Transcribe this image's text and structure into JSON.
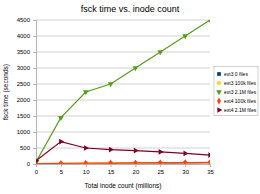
{
  "chart_data": {
    "type": "line",
    "title": "fsck time vs. inode count",
    "x_label": "Total inode count (millions)",
    "y_label": "fsck time (seconds)",
    "x": [
      0,
      5,
      10,
      15,
      20,
      25,
      30,
      35
    ],
    "xlim": [
      0,
      35
    ],
    "xticks": [
      0,
      5,
      10,
      15,
      20,
      25,
      30,
      35
    ],
    "ylim": [
      0,
      4500
    ],
    "yticks": [
      0,
      500,
      1000,
      1500,
      2000,
      2500,
      3000,
      3500,
      4000,
      4500
    ],
    "grid": true,
    "legend": "right",
    "series": [
      {
        "name": "ext3 0 files",
        "color": "#004586",
        "marker": "square",
        "values": [
          5,
          10,
          15,
          20,
          25,
          30,
          35,
          40
        ]
      },
      {
        "name": "ext3 100k files",
        "color": "#ffd320",
        "marker": "circle",
        "values": [
          10,
          15,
          20,
          25,
          30,
          35,
          40,
          45
        ]
      },
      {
        "name": "ext3 2.1M files",
        "color": "#579d1c",
        "marker": "triangle-down",
        "values": [
          60,
          1450,
          2250,
          2500,
          3000,
          3500,
          4000,
          4500
        ]
      },
      {
        "name": "ext4 100k files",
        "color": "#ff420e",
        "marker": "diamond",
        "values": [
          10,
          20,
          25,
          30,
          35,
          40,
          45,
          50
        ]
      },
      {
        "name": "ext4 2.1M files",
        "color": "#7e0021",
        "marker": "triangle-right",
        "values": [
          100,
          700,
          500,
          450,
          420,
          380,
          330,
          280
        ]
      }
    ]
  }
}
